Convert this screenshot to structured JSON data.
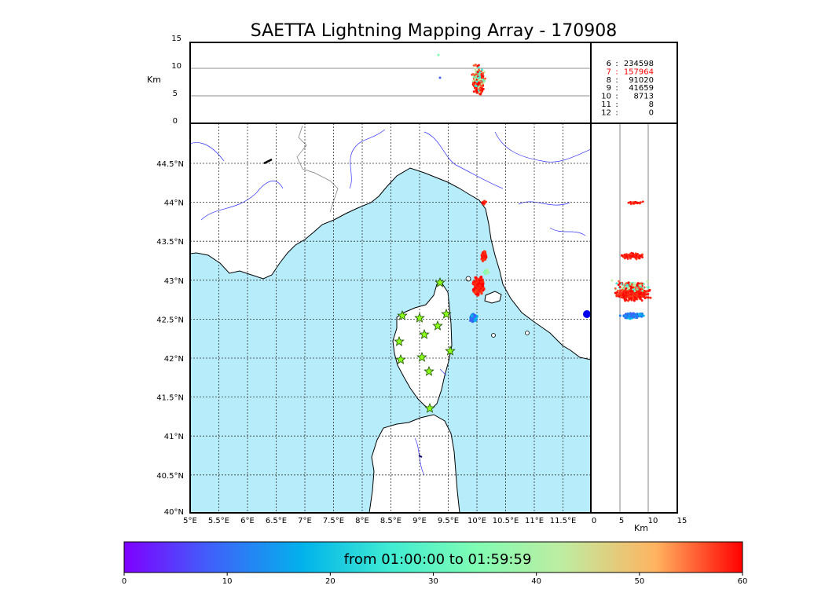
{
  "title": "SAETTA Lightning Mapping Array - 170908",
  "km_label": "Km",
  "altitude_panel": {
    "ticks": [
      "15",
      "10",
      "5",
      "0"
    ],
    "ylabel": "Km"
  },
  "side_panel": {
    "ticks": [
      "0",
      "5",
      "10",
      "15"
    ],
    "xlabel": "Km"
  },
  "station_counts": [
    {
      "stations": "6",
      "sep": ":",
      "count": "234598",
      "highlight": false
    },
    {
      "stations": "7",
      "sep": ":",
      "count": "157964",
      "highlight": true
    },
    {
      "stations": "8",
      "sep": ":",
      "count": "91020",
      "highlight": false
    },
    {
      "stations": "9",
      "sep": ":",
      "count": "41659",
      "highlight": false
    },
    {
      "stations": "10",
      "sep": ":",
      "count": "8713",
      "highlight": false
    },
    {
      "stations": "11",
      "sep": ":",
      "count": "8",
      "highlight": false
    },
    {
      "stations": "12",
      "sep": ":",
      "count": "0",
      "highlight": false
    }
  ],
  "map": {
    "lon_ticks": [
      "5°E",
      "5.5°E",
      "6°E",
      "6.5°E",
      "7°E",
      "7.5°E",
      "8°E",
      "8.5°E",
      "9°E",
      "9.5°E",
      "10°E",
      "10.5°E",
      "11°E",
      "11.5°E"
    ],
    "lat_ticks": [
      "44.5°N",
      "44°N",
      "43.5°N",
      "43°N",
      "42.5°N",
      "42°N",
      "41.5°N",
      "41°N",
      "40.5°N",
      "40°N"
    ],
    "sea_color": "#b7ecfb",
    "land_color": "#ffffff",
    "river_color": "#3333ff"
  },
  "stations_icon": "star-icon",
  "colorbar": {
    "label": "from 01:00:00 to 01:59:59",
    "ticks": [
      "0",
      "10",
      "20",
      "30",
      "40",
      "50",
      "60"
    ],
    "min": 0,
    "max": 60,
    "colors": [
      "#7f00ff",
      "#3f61fa",
      "#01b3eb",
      "#40ecd3",
      "#bfeca1",
      "#ffb360",
      "#ff5f30",
      "#ff0000"
    ]
  }
}
